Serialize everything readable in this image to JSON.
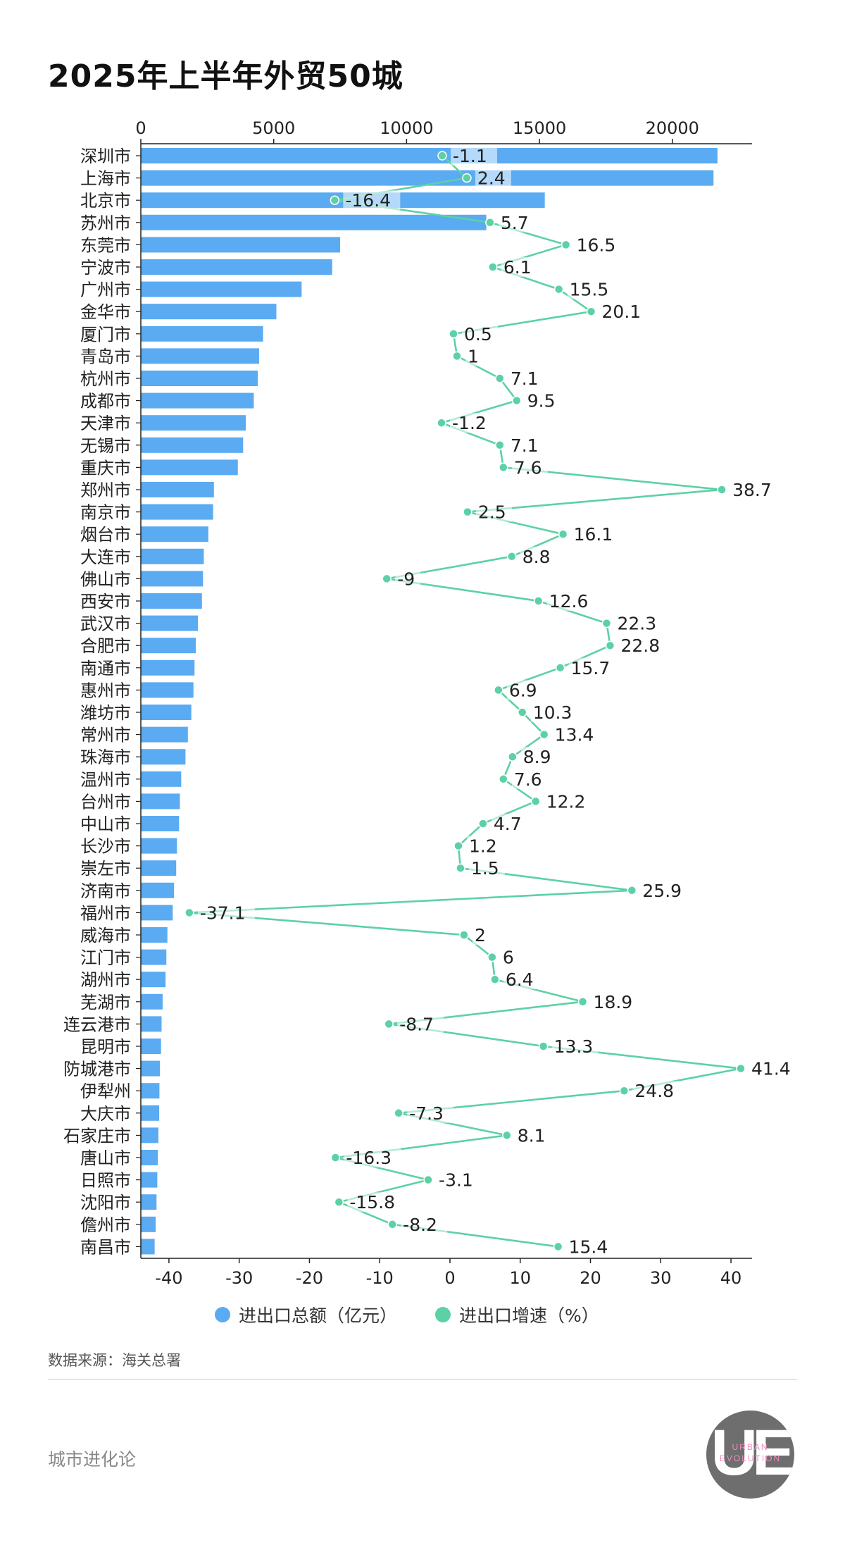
{
  "title": "2025年上半年外贸50城",
  "legend": {
    "total_label": "进出口总额（亿元）",
    "growth_label": "进出口增速（%）"
  },
  "source": "数据来源：海关总署",
  "brand": "城市进化论",
  "logo": {
    "mark": "UE",
    "sub1": "URBAN",
    "sub2": "EVOLUTION"
  },
  "colors": {
    "bar": "#5aabf2",
    "growth": "#5cd1a5"
  },
  "chart_data": {
    "type": "bar+line",
    "orientation": "horizontal",
    "categories": [
      "深圳市",
      "上海市",
      "北京市",
      "苏州市",
      "东莞市",
      "宁波市",
      "广州市",
      "金华市",
      "厦门市",
      "青岛市",
      "杭州市",
      "成都市",
      "天津市",
      "无锡市",
      "重庆市",
      "郑州市",
      "南京市",
      "烟台市",
      "大连市",
      "佛山市",
      "西安市",
      "武汉市",
      "合肥市",
      "南通市",
      "惠州市",
      "潍坊市",
      "常州市",
      "珠海市",
      "温州市",
      "台州市",
      "中山市",
      "长沙市",
      "崇左市",
      "济南市",
      "福州市",
      "威海市",
      "江门市",
      "湖州市",
      "芜湖市",
      "连云港市",
      "昆明市",
      "防城港市",
      "伊犁州",
      "大庆市",
      "石家庄市",
      "唐山市",
      "日照市",
      "沈阳市",
      "儋州市",
      "南昌市"
    ],
    "series": [
      {
        "name": "进出口总额（亿元）",
        "axis": "top",
        "values": [
          21700,
          21550,
          15200,
          13000,
          7500,
          7200,
          6050,
          5100,
          4600,
          4450,
          4400,
          4250,
          3950,
          3850,
          3650,
          2750,
          2720,
          2540,
          2370,
          2340,
          2300,
          2150,
          2070,
          2020,
          1980,
          1900,
          1770,
          1680,
          1520,
          1470,
          1440,
          1360,
          1330,
          1250,
          1200,
          1000,
          960,
          930,
          820,
          780,
          760,
          720,
          700,
          690,
          660,
          640,
          620,
          590,
          560,
          520
        ]
      },
      {
        "name": "进出口增速（%）",
        "axis": "bottom",
        "labels_shown": true,
        "values": [
          -1.1,
          2.4,
          -16.4,
          5.7,
          16.5,
          6.1,
          15.5,
          20.1,
          0.5,
          1.0,
          7.1,
          9.5,
          -1.2,
          7.1,
          7.6,
          38.7,
          2.5,
          16.1,
          8.8,
          -9,
          12.6,
          22.3,
          22.8,
          15.7,
          6.9,
          10.3,
          13.4,
          8.9,
          7.6,
          12.2,
          4.7,
          1.2,
          1.5,
          25.9,
          -37.1,
          2.0,
          6.0,
          6.4,
          18.9,
          -8.7,
          13.3,
          41.4,
          24.8,
          -7.3,
          8.1,
          -16.3,
          -3.1,
          -15.8,
          -8.2,
          15.4
        ]
      }
    ],
    "top_axis": {
      "range": [
        0,
        23000
      ],
      "ticks": [
        "0",
        "5000",
        "10000",
        "15000",
        "20000"
      ],
      "tick_values": [
        0,
        5000,
        10000,
        15000,
        20000
      ]
    },
    "bottom_axis": {
      "range": [
        -44,
        43
      ],
      "ticks": [
        "-40",
        "-30",
        "-20",
        "-10",
        "0",
        "10",
        "20",
        "30",
        "40"
      ],
      "tick_values": [
        -40,
        -30,
        -20,
        -10,
        0,
        10,
        20,
        30,
        40
      ]
    },
    "grid": false,
    "legend_position": "bottom-center"
  }
}
